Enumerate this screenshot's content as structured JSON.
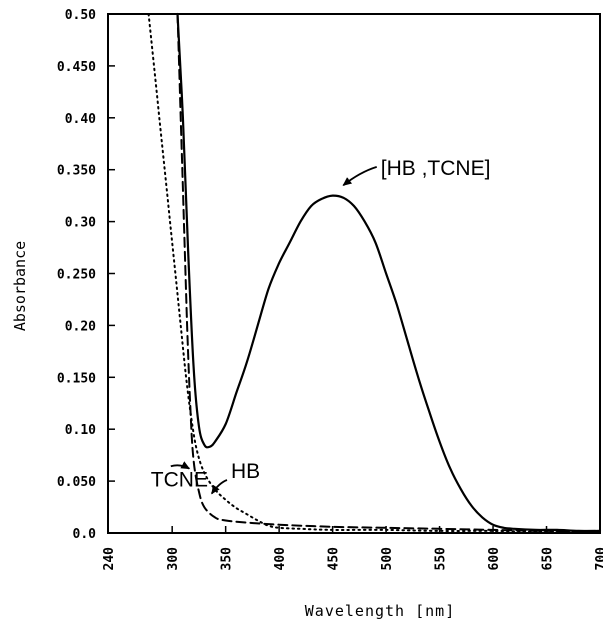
{
  "chart_data": {
    "type": "line",
    "xlabel": "Wavelength [nm]",
    "ylabel": "Absorbance",
    "xlim": [
      240,
      700
    ],
    "ylim": [
      0,
      0.5
    ],
    "x_ticks": [
      {
        "value": 240,
        "label": "240"
      },
      {
        "value": 300,
        "label": "300"
      },
      {
        "value": 350,
        "label": "350"
      },
      {
        "value": 400,
        "label": "400"
      },
      {
        "value": 450,
        "label": "450"
      },
      {
        "value": 500,
        "label": "500"
      },
      {
        "value": 550,
        "label": "550"
      },
      {
        "value": 600,
        "label": "600"
      },
      {
        "value": 650,
        "label": "650"
      },
      {
        "value": 700,
        "label": "700"
      }
    ],
    "y_ticks": [
      {
        "value": 0.0,
        "label": "0.0"
      },
      {
        "value": 0.05,
        "label": "0.050"
      },
      {
        "value": 0.1,
        "label": "0.10"
      },
      {
        "value": 0.15,
        "label": "0.150"
      },
      {
        "value": 0.2,
        "label": "0.20"
      },
      {
        "value": 0.25,
        "label": "0.250"
      },
      {
        "value": 0.3,
        "label": "0.30"
      },
      {
        "value": 0.35,
        "label": "0.350"
      },
      {
        "value": 0.4,
        "label": "0.40"
      },
      {
        "value": 0.45,
        "label": "0.450"
      },
      {
        "value": 0.5,
        "label": "0.50"
      }
    ],
    "grid": false,
    "series": [
      {
        "name": "[HB ,TCNE]",
        "style": "solid",
        "x": [
          305,
          310,
          315,
          320,
          325,
          330,
          335,
          340,
          350,
          360,
          370,
          380,
          390,
          400,
          410,
          420,
          430,
          440,
          450,
          460,
          470,
          480,
          490,
          500,
          510,
          520,
          530,
          540,
          550,
          560,
          570,
          580,
          590,
          600,
          610,
          620,
          640,
          660,
          680,
          700
        ],
        "y": [
          0.5,
          0.4,
          0.27,
          0.16,
          0.103,
          0.085,
          0.083,
          0.088,
          0.105,
          0.135,
          0.165,
          0.2,
          0.235,
          0.26,
          0.28,
          0.3,
          0.315,
          0.322,
          0.325,
          0.323,
          0.315,
          0.3,
          0.28,
          0.25,
          0.22,
          0.185,
          0.15,
          0.118,
          0.088,
          0.062,
          0.042,
          0.026,
          0.015,
          0.008,
          0.005,
          0.004,
          0.003,
          0.003,
          0.002,
          0.002
        ]
      },
      {
        "name": "HB",
        "style": "dotted",
        "x": [
          278,
          283,
          288,
          293,
          298,
          303,
          308,
          313,
          318,
          323,
          330,
          340,
          350,
          360,
          370,
          380,
          390,
          400,
          420,
          450,
          500,
          550,
          600,
          650,
          700
        ],
        "y": [
          0.5,
          0.45,
          0.4,
          0.35,
          0.3,
          0.25,
          0.2,
          0.15,
          0.11,
          0.08,
          0.058,
          0.042,
          0.032,
          0.024,
          0.018,
          0.012,
          0.007,
          0.005,
          0.004,
          0.003,
          0.003,
          0.002,
          0.002,
          0.001,
          0.001
        ]
      },
      {
        "name": "TCNE",
        "style": "dashed",
        "x": [
          305,
          308,
          311,
          314,
          317,
          320,
          325,
          330,
          340,
          350,
          370,
          400,
          450,
          500,
          550,
          600,
          650,
          700
        ],
        "y": [
          0.5,
          0.4,
          0.3,
          0.2,
          0.12,
          0.07,
          0.04,
          0.025,
          0.015,
          0.012,
          0.01,
          0.008,
          0.006,
          0.005,
          0.004,
          0.003,
          0.002,
          0.002
        ]
      }
    ],
    "annotations": [
      {
        "text": "[HB ,TCNE]",
        "x": 495,
        "y": 0.345,
        "arrow_to": {
          "x": 460,
          "y": 0.335
        }
      },
      {
        "text": "HB",
        "x": 355,
        "y": 0.053,
        "arrow_to": {
          "x": 337,
          "y": 0.038
        }
      },
      {
        "text": "TCNE",
        "x": 280,
        "y": 0.045,
        "arrow_to": {
          "x": 316,
          "y": 0.062
        }
      }
    ]
  }
}
